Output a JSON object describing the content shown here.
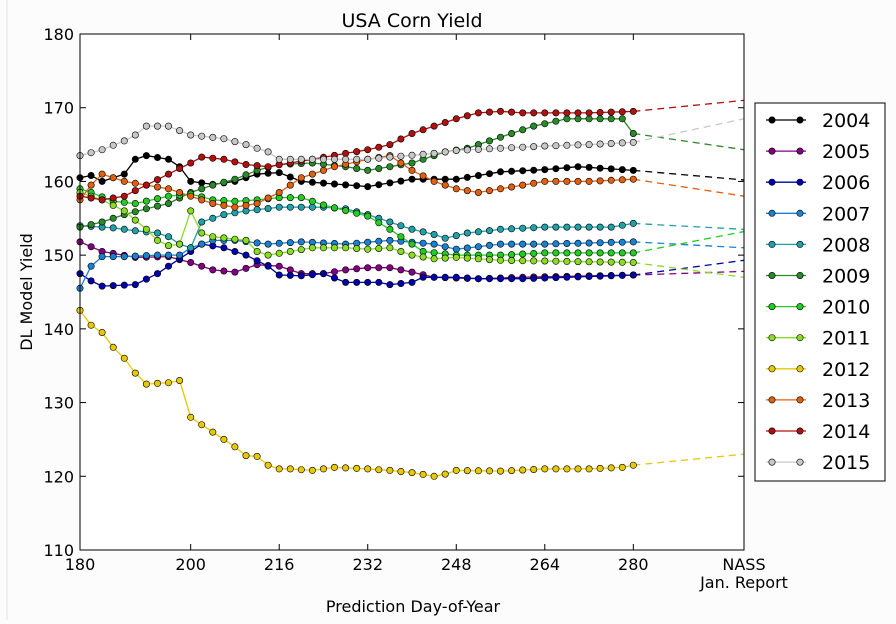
{
  "chart_data": {
    "type": "line",
    "title": "USA Corn Yield",
    "xlabel": "Prediction Day-of-Year",
    "ylabel": "DL Model Yield",
    "xlim": [
      180,
      300
    ],
    "ylim": [
      110,
      180
    ],
    "xticks": [
      180,
      200,
      216,
      232,
      248,
      264,
      280
    ],
    "xtick_labels": [
      "180",
      "200",
      "216",
      "232",
      "248",
      "264",
      "280"
    ],
    "nass_tick": {
      "x": 300,
      "label_line1": "NASS",
      "label_line2": "Jan. Report"
    },
    "yticks": [
      110,
      120,
      130,
      140,
      150,
      160,
      170,
      180
    ],
    "ytick_labels": [
      "110",
      "120",
      "130",
      "140",
      "150",
      "160",
      "170",
      "180"
    ],
    "legend_position": "right",
    "x": [
      180,
      182,
      184,
      186,
      188,
      190,
      192,
      194,
      196,
      198,
      200,
      202,
      204,
      206,
      208,
      210,
      212,
      214,
      216,
      218,
      220,
      222,
      224,
      226,
      228,
      230,
      232,
      234,
      236,
      238,
      240,
      242,
      244,
      246,
      248,
      250,
      252,
      254,
      256,
      258,
      260,
      262,
      264,
      266,
      268,
      270,
      272,
      274,
      276,
      278,
      280
    ],
    "series": [
      {
        "name": "2004",
        "color": "#000000",
        "nass": 160.2,
        "anchors": [
          [
            180,
            160.5
          ],
          [
            182,
            160.8
          ],
          [
            184,
            160.0
          ],
          [
            186,
            160.5
          ],
          [
            188,
            161.0
          ],
          [
            190,
            163.0
          ],
          [
            192,
            163.5
          ],
          [
            196,
            163.0
          ],
          [
            198,
            162.0
          ],
          [
            200,
            160.0
          ],
          [
            204,
            159.6
          ],
          [
            208,
            160.0
          ],
          [
            212,
            161.0
          ],
          [
            216,
            161.2
          ],
          [
            220,
            160.0
          ],
          [
            232,
            159.3
          ],
          [
            240,
            160.3
          ],
          [
            248,
            160.3
          ],
          [
            256,
            161.3
          ],
          [
            264,
            161.6
          ],
          [
            270,
            162.0
          ],
          [
            280,
            161.5
          ]
        ]
      },
      {
        "name": "2005",
        "color": "#800080",
        "nass": 147.8,
        "anchors": [
          [
            180,
            151.8
          ],
          [
            184,
            150.5
          ],
          [
            190,
            149.7
          ],
          [
            196,
            149.8
          ],
          [
            200,
            149.0
          ],
          [
            204,
            148.0
          ],
          [
            208,
            147.7
          ],
          [
            212,
            148.7
          ],
          [
            216,
            148.5
          ],
          [
            220,
            147.5
          ],
          [
            224,
            147.5
          ],
          [
            228,
            148.0
          ],
          [
            232,
            148.3
          ],
          [
            236,
            148.3
          ],
          [
            240,
            147.7
          ],
          [
            244,
            147.0
          ],
          [
            252,
            146.8
          ],
          [
            260,
            147.0
          ],
          [
            280,
            147.3
          ]
        ]
      },
      {
        "name": "2006",
        "color": "#0000aa",
        "nass": 149.3,
        "anchors": [
          [
            180,
            147.5
          ],
          [
            182,
            146.5
          ],
          [
            184,
            145.8
          ],
          [
            190,
            146.0
          ],
          [
            194,
            147.5
          ],
          [
            196,
            148.5
          ],
          [
            200,
            150.5
          ],
          [
            202,
            151.5
          ],
          [
            206,
            151.0
          ],
          [
            210,
            150.0
          ],
          [
            214,
            148.5
          ],
          [
            216,
            147.3
          ],
          [
            220,
            147.2
          ],
          [
            224,
            147.5
          ],
          [
            228,
            146.3
          ],
          [
            234,
            146.3
          ],
          [
            236,
            146.0
          ],
          [
            240,
            146.3
          ],
          [
            242,
            147.0
          ],
          [
            248,
            147.0
          ],
          [
            252,
            146.8
          ],
          [
            260,
            146.8
          ],
          [
            280,
            147.3
          ]
        ]
      },
      {
        "name": "2007",
        "color": "#1a80d0",
        "nass": 151.0,
        "anchors": [
          [
            180,
            145.5
          ],
          [
            182,
            148.5
          ],
          [
            184,
            149.8
          ],
          [
            188,
            149.8
          ],
          [
            194,
            150.0
          ],
          [
            198,
            150.0
          ],
          [
            200,
            151.0
          ],
          [
            204,
            152.0
          ],
          [
            208,
            152.0
          ],
          [
            214,
            151.5
          ],
          [
            220,
            151.8
          ],
          [
            228,
            151.5
          ],
          [
            236,
            152.0
          ],
          [
            244,
            151.5
          ],
          [
            248,
            150.8
          ],
          [
            256,
            151.5
          ],
          [
            264,
            151.5
          ],
          [
            280,
            151.8
          ]
        ]
      },
      {
        "name": "2008",
        "color": "#20a0a8",
        "nass": 153.5,
        "anchors": [
          [
            180,
            154.0
          ],
          [
            186,
            153.7
          ],
          [
            190,
            153.3
          ],
          [
            194,
            153.0
          ],
          [
            196,
            152.5
          ],
          [
            198,
            151.5
          ],
          [
            200,
            151.0
          ],
          [
            202,
            154.5
          ],
          [
            206,
            155.5
          ],
          [
            210,
            156.0
          ],
          [
            216,
            156.5
          ],
          [
            224,
            156.5
          ],
          [
            228,
            156.3
          ],
          [
            232,
            155.5
          ],
          [
            236,
            154.5
          ],
          [
            240,
            153.5
          ],
          [
            244,
            152.8
          ],
          [
            246,
            152.3
          ],
          [
            250,
            153.0
          ],
          [
            256,
            153.5
          ],
          [
            264,
            153.8
          ],
          [
            276,
            153.8
          ],
          [
            280,
            154.3
          ]
        ]
      },
      {
        "name": "2009",
        "color": "#2a8a2a",
        "nass": 164.3,
        "anchors": [
          [
            180,
            153.8
          ],
          [
            184,
            154.5
          ],
          [
            188,
            155.5
          ],
          [
            192,
            156.3
          ],
          [
            196,
            157.0
          ],
          [
            200,
            158.5
          ],
          [
            204,
            159.5
          ],
          [
            208,
            160.3
          ],
          [
            212,
            161.5
          ],
          [
            216,
            162.3
          ],
          [
            222,
            162.5
          ],
          [
            228,
            162.0
          ],
          [
            232,
            161.5
          ],
          [
            236,
            162.0
          ],
          [
            240,
            162.5
          ],
          [
            246,
            164.0
          ],
          [
            250,
            164.5
          ],
          [
            256,
            166.0
          ],
          [
            262,
            167.5
          ],
          [
            268,
            168.5
          ],
          [
            278,
            168.5
          ],
          [
            280,
            166.5
          ]
        ]
      },
      {
        "name": "2010",
        "color": "#22cc22",
        "nass": 153.2,
        "anchors": [
          [
            180,
            159.0
          ],
          [
            182,
            158.5
          ],
          [
            186,
            157.3
          ],
          [
            190,
            157.0
          ],
          [
            196,
            158.0
          ],
          [
            200,
            158.3
          ],
          [
            204,
            157.5
          ],
          [
            208,
            157.3
          ],
          [
            212,
            157.5
          ],
          [
            216,
            157.8
          ],
          [
            220,
            157.8
          ],
          [
            224,
            156.8
          ],
          [
            232,
            155.3
          ],
          [
            236,
            153.5
          ],
          [
            240,
            151.5
          ],
          [
            242,
            150.5
          ],
          [
            248,
            150.0
          ],
          [
            256,
            150.0
          ],
          [
            264,
            150.3
          ],
          [
            280,
            150.3
          ]
        ]
      },
      {
        "name": "2011",
        "color": "#88dd22",
        "nass": 147.0,
        "anchors": [
          [
            180,
            158.5
          ],
          [
            184,
            157.5
          ],
          [
            188,
            156.0
          ],
          [
            192,
            153.5
          ],
          [
            194,
            152.0
          ],
          [
            196,
            151.3
          ],
          [
            198,
            151.5
          ],
          [
            200,
            156.0
          ],
          [
            202,
            153.0
          ],
          [
            204,
            152.5
          ],
          [
            210,
            152.0
          ],
          [
            212,
            150.5
          ],
          [
            214,
            150.0
          ],
          [
            218,
            150.5
          ],
          [
            222,
            151.0
          ],
          [
            228,
            151.0
          ],
          [
            232,
            150.8
          ],
          [
            236,
            151.0
          ],
          [
            240,
            150.0
          ],
          [
            244,
            149.5
          ],
          [
            248,
            149.7
          ],
          [
            256,
            149.3
          ],
          [
            280,
            149.0
          ]
        ]
      },
      {
        "name": "2012",
        "color": "#e8c800",
        "nass": 123.0,
        "anchors": [
          [
            180,
            142.5
          ],
          [
            182,
            140.5
          ],
          [
            184,
            139.5
          ],
          [
            186,
            137.5
          ],
          [
            188,
            136.0
          ],
          [
            190,
            134.0
          ],
          [
            192,
            132.5
          ],
          [
            196,
            132.7
          ],
          [
            198,
            133.0
          ],
          [
            200,
            128.0
          ],
          [
            202,
            127.0
          ],
          [
            204,
            126.0
          ],
          [
            206,
            125.0
          ],
          [
            208,
            124.0
          ],
          [
            210,
            122.8
          ],
          [
            212,
            122.7
          ],
          [
            214,
            121.5
          ],
          [
            216,
            121.0
          ],
          [
            218,
            121.0
          ],
          [
            222,
            120.8
          ],
          [
            226,
            121.2
          ],
          [
            232,
            121.0
          ],
          [
            236,
            120.8
          ],
          [
            240,
            120.5
          ],
          [
            244,
            120.0
          ],
          [
            246,
            120.3
          ],
          [
            248,
            120.8
          ],
          [
            256,
            120.7
          ],
          [
            264,
            121.0
          ],
          [
            272,
            121.0
          ],
          [
            278,
            121.2
          ],
          [
            280,
            121.5
          ]
        ]
      },
      {
        "name": "2013",
        "color": "#e06010",
        "nass": 158.0,
        "anchors": [
          [
            180,
            157.5
          ],
          [
            182,
            159.5
          ],
          [
            184,
            161.0
          ],
          [
            188,
            160.0
          ],
          [
            192,
            159.5
          ],
          [
            196,
            159.0
          ],
          [
            200,
            158.0
          ],
          [
            204,
            157.0
          ],
          [
            208,
            156.5
          ],
          [
            212,
            157.0
          ],
          [
            216,
            158.5
          ],
          [
            220,
            160.5
          ],
          [
            226,
            162.0
          ],
          [
            232,
            163.0
          ],
          [
            236,
            163.5
          ],
          [
            240,
            161.5
          ],
          [
            244,
            160.0
          ],
          [
            248,
            159.0
          ],
          [
            252,
            158.5
          ],
          [
            256,
            159.0
          ],
          [
            264,
            160.0
          ],
          [
            272,
            160.0
          ],
          [
            280,
            160.3
          ]
        ]
      },
      {
        "name": "2014",
        "color": "#b01010",
        "nass": 171.0,
        "anchors": [
          [
            180,
            158.0
          ],
          [
            184,
            157.5
          ],
          [
            188,
            158.0
          ],
          [
            192,
            159.5
          ],
          [
            196,
            161.0
          ],
          [
            200,
            162.5
          ],
          [
            202,
            163.3
          ],
          [
            206,
            163.0
          ],
          [
            210,
            162.3
          ],
          [
            214,
            162.0
          ],
          [
            218,
            162.5
          ],
          [
            222,
            163.0
          ],
          [
            228,
            163.8
          ],
          [
            232,
            164.3
          ],
          [
            236,
            165.0
          ],
          [
            240,
            166.5
          ],
          [
            244,
            167.5
          ],
          [
            248,
            168.5
          ],
          [
            252,
            169.3
          ],
          [
            256,
            169.5
          ],
          [
            260,
            169.3
          ],
          [
            266,
            169.3
          ],
          [
            272,
            169.3
          ],
          [
            280,
            169.5
          ]
        ]
      },
      {
        "name": "2015",
        "color": "#c8c8c8",
        "nass": 168.5,
        "anchors": [
          [
            180,
            163.5
          ],
          [
            184,
            164.3
          ],
          [
            188,
            165.5
          ],
          [
            190,
            166.3
          ],
          [
            192,
            167.5
          ],
          [
            196,
            167.5
          ],
          [
            200,
            166.3
          ],
          [
            206,
            165.8
          ],
          [
            210,
            165.0
          ],
          [
            214,
            164.0
          ],
          [
            216,
            163.0
          ],
          [
            220,
            163.0
          ],
          [
            226,
            163.0
          ],
          [
            232,
            163.0
          ],
          [
            236,
            163.3
          ],
          [
            244,
            163.8
          ],
          [
            248,
            164.2
          ],
          [
            256,
            164.5
          ],
          [
            264,
            164.8
          ],
          [
            272,
            165.0
          ],
          [
            280,
            165.3
          ]
        ]
      }
    ]
  }
}
